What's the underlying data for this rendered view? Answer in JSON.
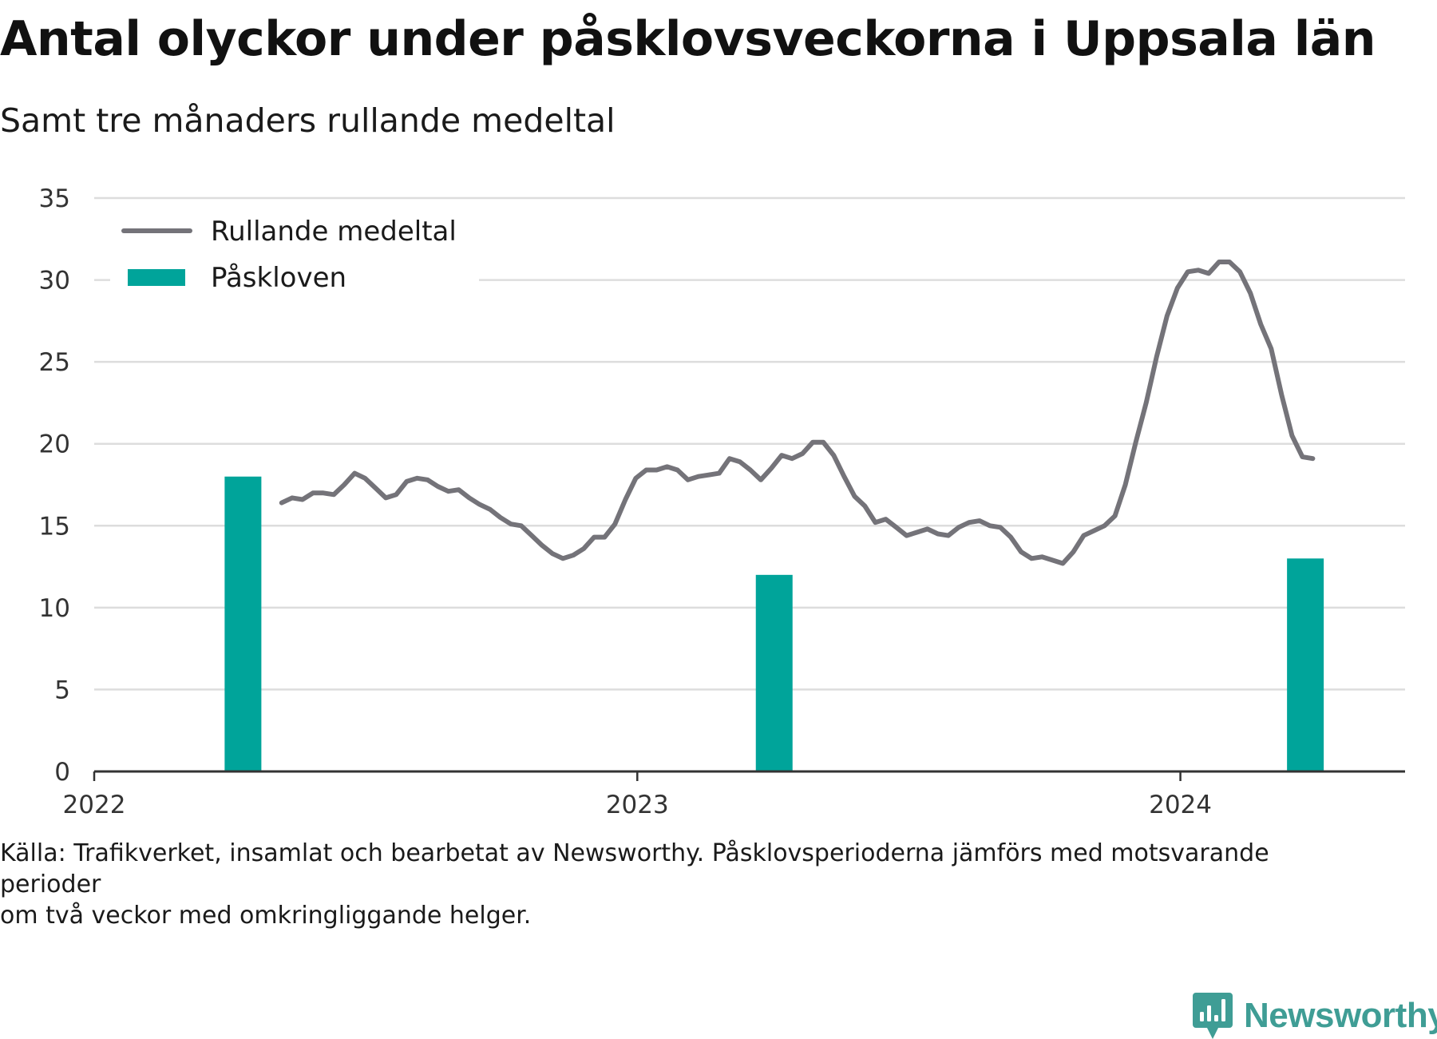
{
  "title": "Antal olyckor under påsklovsveckorna i Uppsala län",
  "subtitle": "Samt tre månaders rullande medeltal",
  "source": "Källa: Trafikverket, insamlat och bearbetat av Newsworthy. Påsklovsperioderna jämförs med motsvarande perioder\nom två veckor med omkringliggande helger.",
  "logo": {
    "text": "Newsworthy",
    "icon": "newsworthy-chart-bubble-icon"
  },
  "colors": {
    "line": "#747379",
    "bar": "#00a49a",
    "grid": "#dddddd",
    "axis": "#333333",
    "text": "#111111"
  },
  "chart_data": {
    "type": "bar+line",
    "xlim": [
      "2022-01-01",
      "2024-05-31"
    ],
    "ylim": [
      0,
      35
    ],
    "yticks": [
      0,
      5,
      10,
      15,
      20,
      25,
      30,
      35
    ],
    "xtick_labels": [
      "2022",
      "2023",
      "2024"
    ],
    "grid": true,
    "legend_position": "top-left",
    "legend": [
      {
        "label": "Rullande medeltal",
        "kind": "line"
      },
      {
        "label": "Påskloven",
        "kind": "bar"
      }
    ],
    "bars": {
      "name": "Påskloven",
      "points": [
        {
          "x": "2022-04-11",
          "y": 18
        },
        {
          "x": "2023-04-03",
          "y": 12
        },
        {
          "x": "2024-03-25",
          "y": 13
        }
      ]
    },
    "line": {
      "name": "Rullande medeltal",
      "points": [
        {
          "x": "2022-05-07",
          "y": 16.4
        },
        {
          "x": "2022-05-14",
          "y": 16.7
        },
        {
          "x": "2022-05-21",
          "y": 16.6
        },
        {
          "x": "2022-05-28",
          "y": 17.0
        },
        {
          "x": "2022-06-04",
          "y": 17.0
        },
        {
          "x": "2022-06-11",
          "y": 16.9
        },
        {
          "x": "2022-06-18",
          "y": 17.5
        },
        {
          "x": "2022-06-25",
          "y": 18.2
        },
        {
          "x": "2022-07-02",
          "y": 17.9
        },
        {
          "x": "2022-07-09",
          "y": 17.3
        },
        {
          "x": "2022-07-16",
          "y": 16.7
        },
        {
          "x": "2022-07-23",
          "y": 16.9
        },
        {
          "x": "2022-07-30",
          "y": 17.7
        },
        {
          "x": "2022-08-06",
          "y": 17.9
        },
        {
          "x": "2022-08-13",
          "y": 17.8
        },
        {
          "x": "2022-08-20",
          "y": 17.4
        },
        {
          "x": "2022-08-27",
          "y": 17.1
        },
        {
          "x": "2022-09-03",
          "y": 17.2
        },
        {
          "x": "2022-09-10",
          "y": 16.7
        },
        {
          "x": "2022-09-17",
          "y": 16.3
        },
        {
          "x": "2022-09-24",
          "y": 16.0
        },
        {
          "x": "2022-10-01",
          "y": 15.5
        },
        {
          "x": "2022-10-08",
          "y": 15.1
        },
        {
          "x": "2022-10-15",
          "y": 15.0
        },
        {
          "x": "2022-10-22",
          "y": 14.4
        },
        {
          "x": "2022-10-29",
          "y": 13.8
        },
        {
          "x": "2022-11-05",
          "y": 13.3
        },
        {
          "x": "2022-11-12",
          "y": 13.0
        },
        {
          "x": "2022-11-19",
          "y": 13.2
        },
        {
          "x": "2022-11-26",
          "y": 13.6
        },
        {
          "x": "2022-12-03",
          "y": 14.3
        },
        {
          "x": "2022-12-10",
          "y": 14.3
        },
        {
          "x": "2022-12-17",
          "y": 15.1
        },
        {
          "x": "2022-12-24",
          "y": 16.6
        },
        {
          "x": "2022-12-31",
          "y": 17.9
        },
        {
          "x": "2023-01-07",
          "y": 18.4
        },
        {
          "x": "2023-01-14",
          "y": 18.4
        },
        {
          "x": "2023-01-21",
          "y": 18.6
        },
        {
          "x": "2023-01-28",
          "y": 18.4
        },
        {
          "x": "2023-02-04",
          "y": 17.8
        },
        {
          "x": "2023-02-11",
          "y": 18.0
        },
        {
          "x": "2023-02-18",
          "y": 18.1
        },
        {
          "x": "2023-02-25",
          "y": 18.2
        },
        {
          "x": "2023-03-04",
          "y": 19.1
        },
        {
          "x": "2023-03-11",
          "y": 18.9
        },
        {
          "x": "2023-03-18",
          "y": 18.4
        },
        {
          "x": "2023-03-25",
          "y": 17.8
        },
        {
          "x": "2023-04-01",
          "y": 18.5
        },
        {
          "x": "2023-04-08",
          "y": 19.3
        },
        {
          "x": "2023-04-15",
          "y": 19.1
        },
        {
          "x": "2023-04-22",
          "y": 19.4
        },
        {
          "x": "2023-04-29",
          "y": 20.1
        },
        {
          "x": "2023-05-06",
          "y": 20.1
        },
        {
          "x": "2023-05-13",
          "y": 19.3
        },
        {
          "x": "2023-05-20",
          "y": 18.0
        },
        {
          "x": "2023-05-27",
          "y": 16.8
        },
        {
          "x": "2023-06-03",
          "y": 16.2
        },
        {
          "x": "2023-06-10",
          "y": 15.2
        },
        {
          "x": "2023-06-17",
          "y": 15.4
        },
        {
          "x": "2023-06-24",
          "y": 14.9
        },
        {
          "x": "2023-07-01",
          "y": 14.4
        },
        {
          "x": "2023-07-08",
          "y": 14.6
        },
        {
          "x": "2023-07-15",
          "y": 14.8
        },
        {
          "x": "2023-07-22",
          "y": 14.5
        },
        {
          "x": "2023-07-29",
          "y": 14.4
        },
        {
          "x": "2023-08-05",
          "y": 14.9
        },
        {
          "x": "2023-08-12",
          "y": 15.2
        },
        {
          "x": "2023-08-19",
          "y": 15.3
        },
        {
          "x": "2023-08-26",
          "y": 15.0
        },
        {
          "x": "2023-09-02",
          "y": 14.9
        },
        {
          "x": "2023-09-09",
          "y": 14.3
        },
        {
          "x": "2023-09-16",
          "y": 13.4
        },
        {
          "x": "2023-09-23",
          "y": 13.0
        },
        {
          "x": "2023-09-30",
          "y": 13.1
        },
        {
          "x": "2023-10-07",
          "y": 12.9
        },
        {
          "x": "2023-10-14",
          "y": 12.7
        },
        {
          "x": "2023-10-21",
          "y": 13.4
        },
        {
          "x": "2023-10-28",
          "y": 14.4
        },
        {
          "x": "2023-11-04",
          "y": 14.7
        },
        {
          "x": "2023-11-11",
          "y": 15.0
        },
        {
          "x": "2023-11-18",
          "y": 15.6
        },
        {
          "x": "2023-11-25",
          "y": 17.5
        },
        {
          "x": "2023-12-02",
          "y": 20.1
        },
        {
          "x": "2023-12-09",
          "y": 22.5
        },
        {
          "x": "2023-12-16",
          "y": 25.3
        },
        {
          "x": "2023-12-23",
          "y": 27.8
        },
        {
          "x": "2023-12-30",
          "y": 29.5
        },
        {
          "x": "2024-01-06",
          "y": 30.5
        },
        {
          "x": "2024-01-13",
          "y": 30.6
        },
        {
          "x": "2024-01-20",
          "y": 30.4
        },
        {
          "x": "2024-01-27",
          "y": 31.1
        },
        {
          "x": "2024-02-03",
          "y": 31.1
        },
        {
          "x": "2024-02-10",
          "y": 30.5
        },
        {
          "x": "2024-02-17",
          "y": 29.2
        },
        {
          "x": "2024-02-24",
          "y": 27.3
        },
        {
          "x": "2024-03-02",
          "y": 25.8
        },
        {
          "x": "2024-03-09",
          "y": 23.0
        },
        {
          "x": "2024-03-16",
          "y": 20.5
        },
        {
          "x": "2024-03-23",
          "y": 19.2
        },
        {
          "x": "2024-03-30",
          "y": 19.1
        }
      ]
    }
  }
}
